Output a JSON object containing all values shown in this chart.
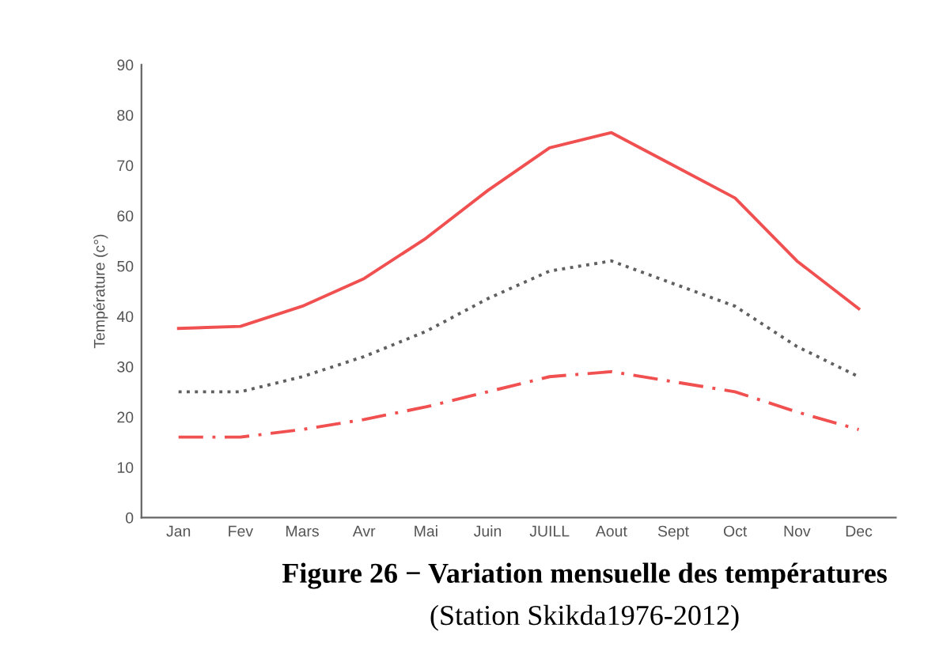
{
  "chart_data": {
    "type": "line",
    "ylabel": "Température (c°)",
    "categories": [
      "Jan",
      "Fev",
      "Mars",
      "Avr",
      "Mai",
      "Juin",
      "JUILL",
      "Aout",
      "Sept",
      "Oct",
      "Nov",
      "Dec"
    ],
    "series": [
      {
        "color": "#f05050",
        "line_style": "solid",
        "values": [
          37.6,
          38,
          42,
          47.5,
          55.5,
          65,
          73.5,
          76.5,
          70,
          63.5,
          51,
          41.5
        ]
      },
      {
        "color": "#606060",
        "line_style": "dotted",
        "values": [
          25,
          25,
          28,
          32,
          37,
          43.5,
          49,
          51,
          46.5,
          42,
          34,
          28
        ]
      },
      {
        "color": "#f05050",
        "line_style": "dashed",
        "values": [
          16,
          16,
          17.5,
          19.5,
          22,
          25,
          28,
          29,
          27,
          25,
          21,
          17.5
        ]
      }
    ],
    "ylim": [
      0,
      90
    ],
    "yticks": [
      0,
      10,
      20,
      30,
      40,
      50,
      60,
      70,
      80,
      90
    ],
    "grid": false,
    "legend": false,
    "annotations": [
      "Figure 26 − Variation mensuelle des températures",
      "(Station Skikda1976-2012)"
    ]
  }
}
